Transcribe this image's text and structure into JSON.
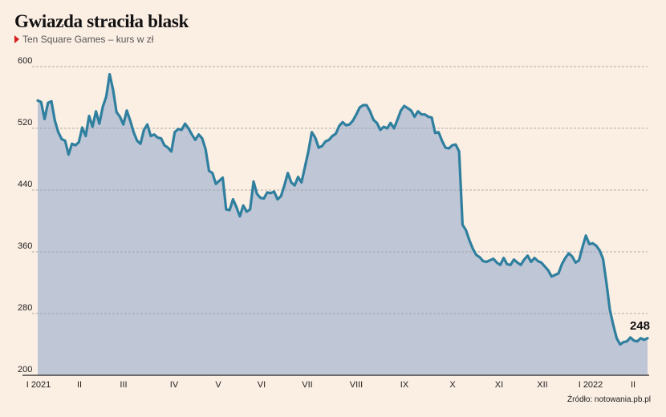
{
  "title": "Gwiazda straciła blask",
  "subtitle": "Ten Square Games – kurs w zł",
  "source": "Źródło: notowania.pb.pl",
  "colors": {
    "background": "#fbeee3",
    "line": "#2f7f9f",
    "area": "#bfc6d6",
    "grid": "#9a9a9a",
    "marker": "#d62020"
  },
  "icons": {
    "subtitle_marker": "red-triangle-marker"
  },
  "chart_data": {
    "type": "area",
    "ylim": [
      200,
      600
    ],
    "yticks": [
      200,
      280,
      360,
      440,
      520,
      600
    ],
    "ytick_labels": [
      "200",
      "280",
      "360",
      "440",
      "520",
      "600"
    ],
    "xticks": [
      "I 2021",
      "II",
      "III",
      "IV",
      "V",
      "VI",
      "VII",
      "VIII",
      "IX",
      "X",
      "XI",
      "XII",
      "I 2022",
      "II"
    ],
    "last_value_label": "248",
    "grid": true,
    "values": [
      556,
      554,
      532,
      553,
      555,
      530,
      515,
      506,
      504,
      486,
      500,
      498,
      502,
      521,
      510,
      536,
      522,
      542,
      526,
      548,
      561,
      590,
      570,
      541,
      535,
      525,
      543,
      530,
      515,
      504,
      500,
      518,
      525,
      510,
      512,
      508,
      507,
      498,
      495,
      490,
      515,
      519,
      518,
      526,
      520,
      512,
      505,
      512,
      507,
      493,
      465,
      462,
      448,
      452,
      456,
      415,
      414,
      428,
      418,
      406,
      420,
      412,
      415,
      451,
      435,
      430,
      429,
      437,
      436,
      438,
      428,
      432,
      446,
      462,
      450,
      446,
      457,
      450,
      470,
      490,
      515,
      508,
      495,
      497,
      503,
      505,
      510,
      513,
      523,
      528,
      524,
      525,
      530,
      538,
      547,
      550,
      550,
      542,
      531,
      527,
      518,
      522,
      520,
      527,
      520,
      531,
      543,
      549,
      546,
      543,
      535,
      542,
      538,
      538,
      535,
      534,
      514,
      515,
      504,
      495,
      494,
      498,
      499,
      490,
      395,
      388,
      375,
      364,
      356,
      353,
      348,
      347,
      349,
      351,
      346,
      343,
      352,
      344,
      343,
      350,
      346,
      343,
      350,
      355,
      347,
      352,
      348,
      346,
      341,
      336,
      328,
      330,
      332,
      344,
      352,
      358,
      354,
      346,
      349,
      366,
      381,
      370,
      371,
      368,
      362,
      351,
      320,
      285,
      265,
      248,
      240,
      243,
      244,
      249,
      245,
      244,
      248,
      246,
      248
    ]
  }
}
